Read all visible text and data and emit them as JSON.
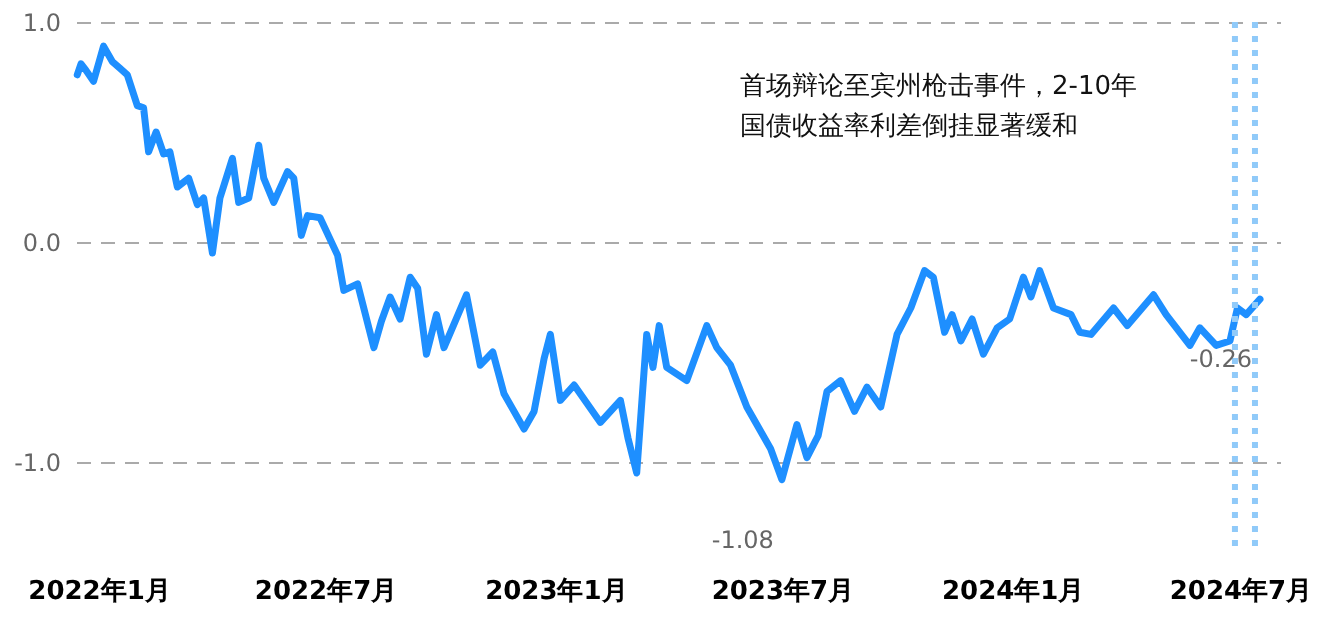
{
  "chart_data": {
    "type": "line",
    "annotations": [
      "首场辩论至宾州枪击事件，2-10年国债收益率利差倒挂显著缓和",
      {
        "text": "-1.08",
        "x": "2023-07-01",
        "y": -1.08
      },
      {
        "text": "-0.26",
        "x": "2024-07-17",
        "y": -0.26
      }
    ],
    "xlim": [
      "2021-12-14",
      "2024-08-02"
    ],
    "xticks": [
      {
        "value": "2022-01-01",
        "label": "2022年1月"
      },
      {
        "value": "2022-07-01",
        "label": "2022年7月"
      },
      {
        "value": "2023-01-01",
        "label": "2023年1月"
      },
      {
        "value": "2023-07-01",
        "label": "2023年7月"
      },
      {
        "value": "2024-01-01",
        "label": "2024年1月"
      },
      {
        "value": "2024-07-01",
        "label": "2024年7月"
      }
    ],
    "ylim": [
      -1.4,
      1.0
    ],
    "yticks": [
      {
        "value": -1,
        "label": "-1.0"
      },
      {
        "value": 0,
        "label": "0.0"
      },
      {
        "value": 1,
        "label": "1.0"
      }
    ],
    "grid": "y",
    "line_style": "solid",
    "ref_lines": [
      {
        "axis": "x",
        "value": "2024-06-27",
        "color": "#90caf9",
        "line_style": "dotted"
      },
      {
        "axis": "x",
        "value": "2024-07-13",
        "color": "#90caf9",
        "line_style": "dotted"
      }
    ],
    "x": [
      "2021-12-15",
      "2021-12-18",
      "2021-12-22",
      "2021-12-28",
      "2022-01-05",
      "2022-01-12",
      "2022-01-18",
      "2022-01-24",
      "2022-02-01",
      "2022-02-06",
      "2022-02-10",
      "2022-02-16",
      "2022-02-22",
      "2022-02-27",
      "2022-03-05",
      "2022-03-14",
      "2022-03-21",
      "2022-03-26",
      "2022-04-02",
      "2022-04-08",
      "2022-04-18",
      "2022-04-23",
      "2022-05-01",
      "2022-05-09",
      "2022-05-13",
      "2022-05-21",
      "2022-06-01",
      "2022-06-06",
      "2022-06-12",
      "2022-06-17",
      "2022-06-27",
      "2022-07-11",
      "2022-07-16",
      "2022-07-27",
      "2022-08-09",
      "2022-08-15",
      "2022-08-22",
      "2022-08-30",
      "2022-09-07",
      "2022-09-13",
      "2022-09-20",
      "2022-09-28",
      "2022-10-04",
      "2022-10-22",
      "2022-11-02",
      "2022-11-12",
      "2022-11-21",
      "2022-12-07",
      "2022-12-15",
      "2022-12-23",
      "2022-12-28",
      "2023-01-05",
      "2023-01-16",
      "2023-02-06",
      "2023-02-22",
      "2023-02-28",
      "2023-03-07",
      "2023-03-15",
      "2023-03-20",
      "2023-03-25",
      "2023-03-31",
      "2023-04-16",
      "2023-05-02",
      "2023-05-10",
      "2023-05-21",
      "2023-06-03",
      "2023-06-22",
      "2023-07-01",
      "2023-07-13",
      "2023-07-21",
      "2023-07-30",
      "2023-08-06",
      "2023-08-17",
      "2023-08-28",
      "2023-09-07",
      "2023-09-18",
      "2023-10-01",
      "2023-10-12",
      "2023-10-23",
      "2023-10-30",
      "2023-11-08",
      "2023-11-14",
      "2023-11-21",
      "2023-11-30",
      "2023-12-09",
      "2023-12-20",
      "2023-12-30",
      "2024-01-10",
      "2024-01-16",
      "2024-01-23",
      "2024-02-03",
      "2024-02-17",
      "2024-02-24",
      "2024-03-04",
      "2024-03-22",
      "2024-04-02",
      "2024-04-23",
      "2024-05-03",
      "2024-05-22",
      "2024-05-30",
      "2024-06-12",
      "2024-06-23",
      "2024-06-29",
      "2024-07-06",
      "2024-07-17"
    ],
    "series": [
      {
        "color": "#1e8fff",
        "values": [
          0.76,
          0.81,
          0.78,
          0.73,
          0.89,
          0.82,
          0.79,
          0.76,
          0.62,
          0.61,
          0.41,
          0.5,
          0.4,
          0.41,
          0.25,
          0.29,
          0.17,
          0.2,
          -0.05,
          0.2,
          0.38,
          0.18,
          0.2,
          0.44,
          0.29,
          0.18,
          0.32,
          0.29,
          0.03,
          0.12,
          0.11,
          -0.06,
          -0.22,
          -0.19,
          -0.48,
          -0.36,
          -0.25,
          -0.35,
          -0.16,
          -0.21,
          -0.51,
          -0.33,
          -0.48,
          -0.24,
          -0.56,
          -0.5,
          -0.69,
          -0.85,
          -0.77,
          -0.53,
          -0.42,
          -0.72,
          -0.65,
          -0.82,
          -0.72,
          -0.89,
          -1.05,
          -0.42,
          -0.57,
          -0.38,
          -0.57,
          -0.63,
          -0.38,
          -0.48,
          -0.56,
          -0.75,
          -0.94,
          -1.08,
          -0.83,
          -0.98,
          -0.88,
          -0.68,
          -0.63,
          -0.77,
          -0.66,
          -0.75,
          -0.42,
          -0.3,
          -0.13,
          -0.16,
          -0.41,
          -0.33,
          -0.45,
          -0.35,
          -0.51,
          -0.39,
          -0.35,
          -0.16,
          -0.25,
          -0.13,
          -0.3,
          -0.33,
          -0.41,
          -0.42,
          -0.3,
          -0.38,
          -0.24,
          -0.33,
          -0.47,
          -0.39,
          -0.47,
          -0.45,
          -0.3,
          -0.33,
          -0.26
        ]
      }
    ]
  }
}
